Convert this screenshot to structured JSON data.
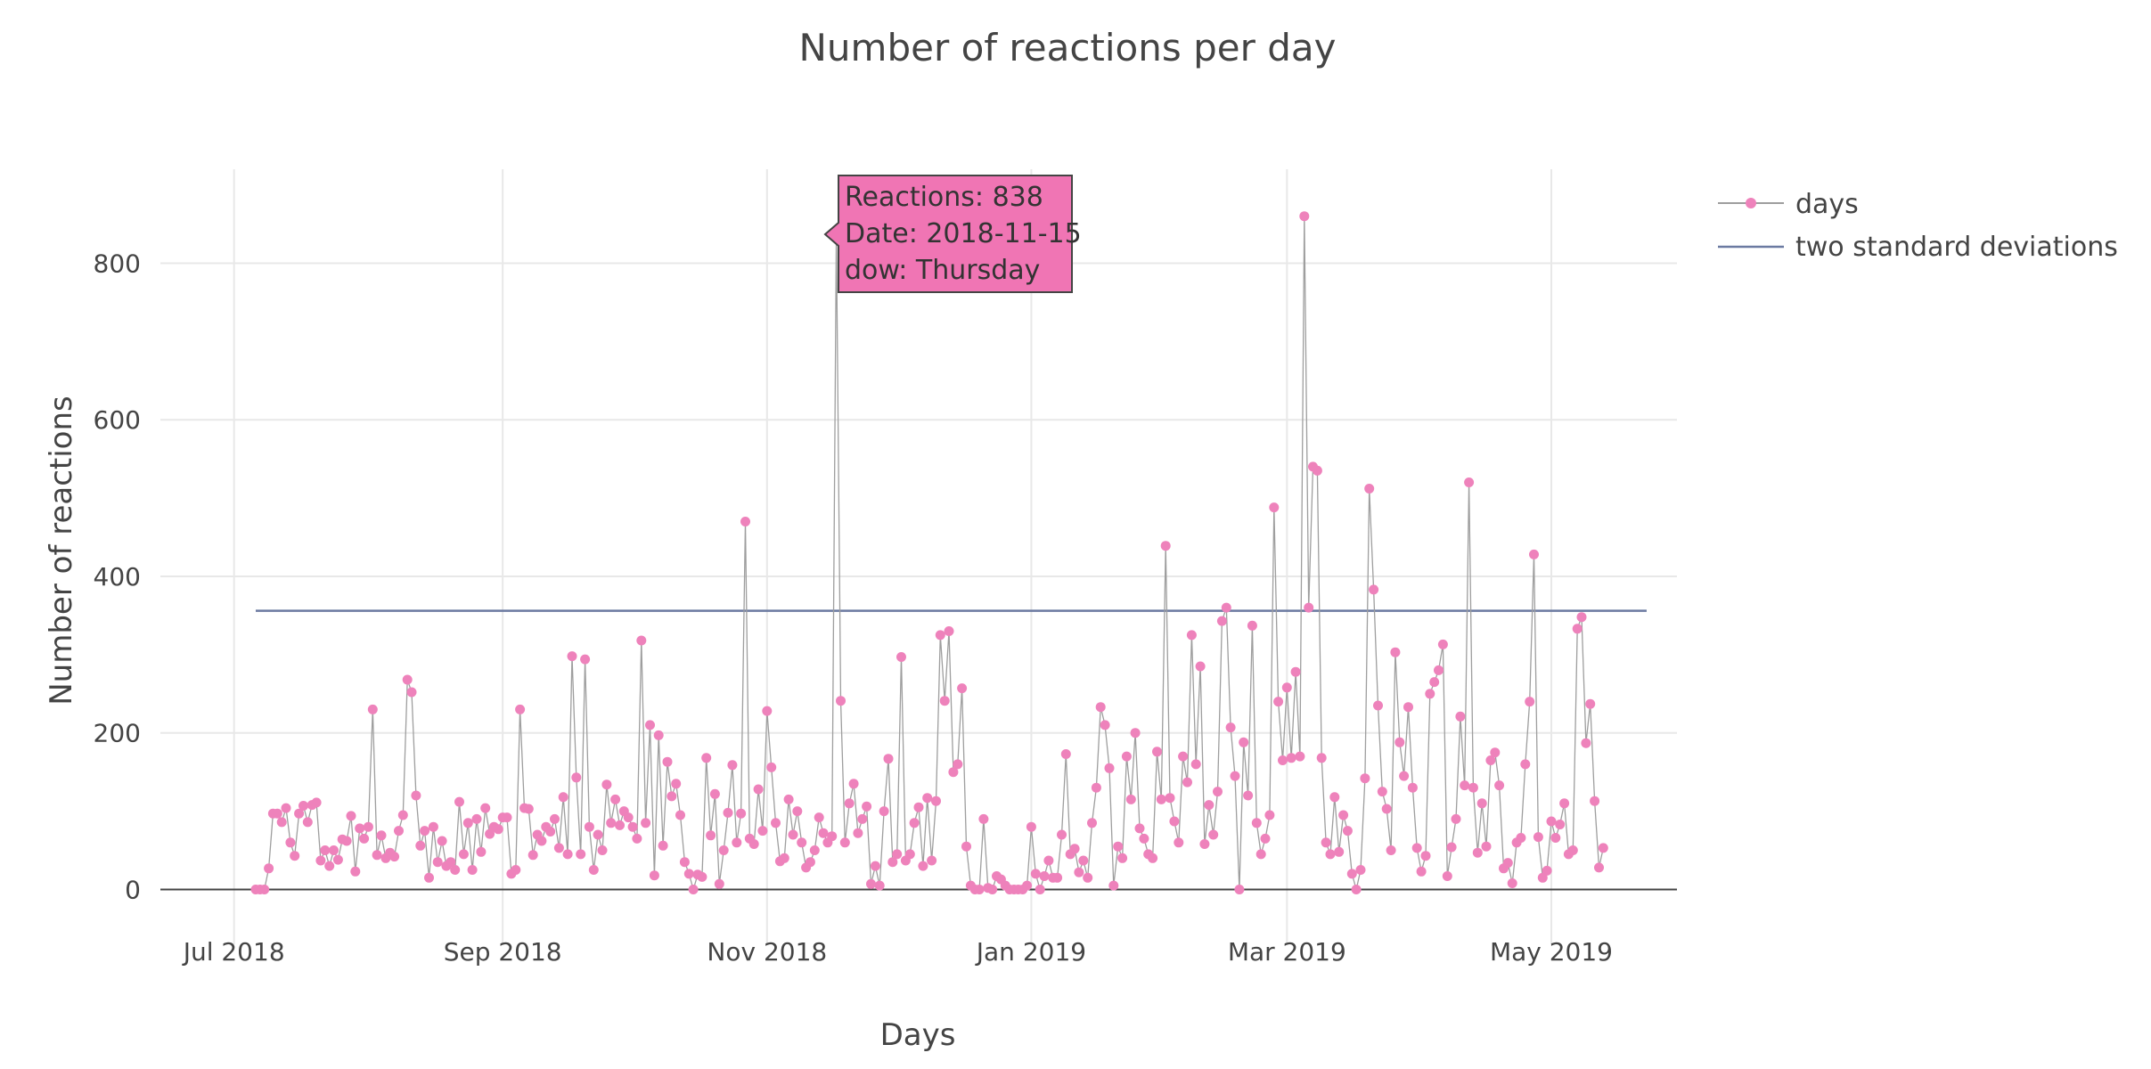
{
  "colors": {
    "marker": "#ee82bb",
    "trace_line": "#9e9e9e",
    "threshold_line": "#6b7aa1",
    "grid": "#e8e8e8",
    "zero_line": "#444444",
    "tooltip_fill": "#f075b4",
    "tooltip_border": "#444444",
    "text": "#444444"
  },
  "chart_data": {
    "type": "line",
    "title": "Number of reactions per day",
    "xlabel": "Days",
    "ylabel": "Number of reactions",
    "ylim": [
      -70,
      920
    ],
    "xlim": [
      "2018-06-14",
      "2019-05-30"
    ],
    "x_start": "2018-07-06",
    "x_ticks": [
      {
        "date": "2018-07-01",
        "label": "Jul 2018"
      },
      {
        "date": "2018-09-01",
        "label": "Sep 2018"
      },
      {
        "date": "2018-11-01",
        "label": "Nov 2018"
      },
      {
        "date": "2019-01-01",
        "label": "Jan 2019"
      },
      {
        "date": "2019-03-01",
        "label": "Mar 2019"
      },
      {
        "date": "2019-05-01",
        "label": "May 2019"
      }
    ],
    "y_ticks": [
      0,
      200,
      400,
      600,
      800
    ],
    "series": [
      {
        "name": "days",
        "mode": "lines+markers",
        "values": [
          0,
          0,
          0,
          27,
          97,
          97,
          86,
          104,
          60,
          43,
          97,
          107,
          86,
          108,
          111,
          37,
          50,
          30,
          50,
          38,
          64,
          62,
          94,
          23,
          78,
          65,
          80,
          230,
          44,
          69,
          40,
          47,
          42,
          75,
          95,
          268,
          252,
          120,
          56,
          75,
          15,
          80,
          35,
          62,
          30,
          35,
          25,
          112,
          45,
          85,
          25,
          90,
          48,
          104,
          71,
          80,
          77,
          92,
          92,
          20,
          25,
          230,
          104,
          103,
          44,
          70,
          62,
          80,
          74,
          90,
          53,
          118,
          45,
          298,
          143,
          45,
          294,
          80,
          25,
          70,
          50,
          134,
          85,
          115,
          82,
          100,
          92,
          80,
          65,
          318,
          85,
          210,
          18,
          197,
          56,
          163,
          119,
          135,
          95,
          35,
          20,
          0,
          19,
          16,
          168,
          69,
          122,
          7,
          50,
          98,
          159,
          60,
          97,
          470,
          65,
          58,
          128,
          75,
          228,
          156,
          85,
          36,
          40,
          115,
          70,
          100,
          60,
          28,
          35,
          50,
          92,
          72,
          60,
          68,
          838,
          241,
          60,
          110,
          135,
          72,
          90,
          106,
          7,
          30,
          5,
          100,
          167,
          35,
          45,
          297,
          37,
          45,
          85,
          105,
          30,
          117,
          37,
          113,
          325,
          241,
          330,
          150,
          160,
          257,
          55,
          5,
          0,
          0,
          90,
          2,
          0,
          17,
          13,
          5,
          0,
          0,
          0,
          0,
          5,
          80,
          20,
          0,
          17,
          37,
          15,
          15,
          70,
          173,
          45,
          52,
          22,
          37,
          15,
          85,
          130,
          233,
          210,
          155,
          5,
          55,
          40,
          170,
          115,
          200,
          78,
          65,
          45,
          40,
          176,
          115,
          439,
          117,
          87,
          60,
          170,
          137,
          325,
          160,
          285,
          58,
          108,
          70,
          125,
          343,
          360,
          207,
          145,
          0,
          188,
          120,
          337,
          85,
          45,
          65,
          95,
          488,
          240,
          165,
          258,
          168,
          278,
          170,
          860,
          360,
          540,
          535,
          168,
          60,
          45,
          118,
          48,
          95,
          75,
          20,
          0,
          25,
          142,
          512,
          383,
          235,
          125,
          103,
          50,
          303,
          188,
          145,
          233,
          130,
          53,
          23,
          43,
          250,
          265,
          280,
          313,
          17,
          54,
          90,
          221,
          133,
          520,
          130,
          47,
          110,
          55,
          165,
          175,
          133,
          27,
          34,
          8,
          60,
          66,
          160,
          240,
          428,
          67,
          15,
          24,
          87,
          66,
          83,
          110,
          45,
          50,
          333,
          348,
          187,
          237,
          113,
          28,
          53
        ]
      },
      {
        "name": "two standard deviations",
        "mode": "lines",
        "x": [
          "2018-07-06",
          "2019-05-23"
        ],
        "values": [
          356,
          356
        ]
      }
    ],
    "legend_position": "top-right",
    "hover": {
      "date": "2018-11-15",
      "value": 838,
      "lines": [
        "Reactions: 838",
        "Date: 2018-11-15",
        "dow: Thursday"
      ]
    }
  }
}
